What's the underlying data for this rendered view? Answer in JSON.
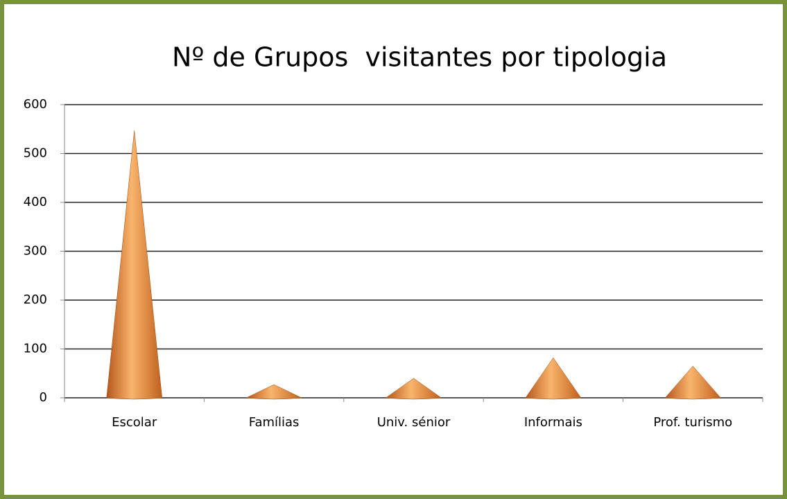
{
  "chart_data": {
    "type": "bar",
    "bar_shape": "cone",
    "title": "Nº de Grupos  visitantes por tipologia",
    "categories": [
      "Escolar",
      "Famílias",
      "Univ. sénior",
      "Informais",
      "Prof. turismo"
    ],
    "values": [
      547,
      27,
      40,
      82,
      65
    ],
    "color": "#e8893a",
    "ylim": [
      0,
      600
    ],
    "yticks": [
      0,
      100,
      200,
      300,
      400,
      500,
      600
    ],
    "grid": true
  }
}
